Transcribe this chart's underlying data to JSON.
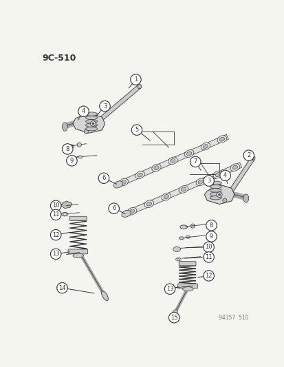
{
  "title": "9C-510",
  "footer": "94157  510",
  "bg_color": "#f5f5f0",
  "line_color": "#333333",
  "fig_width": 4.14,
  "fig_height": 5.33,
  "dpi": 100
}
